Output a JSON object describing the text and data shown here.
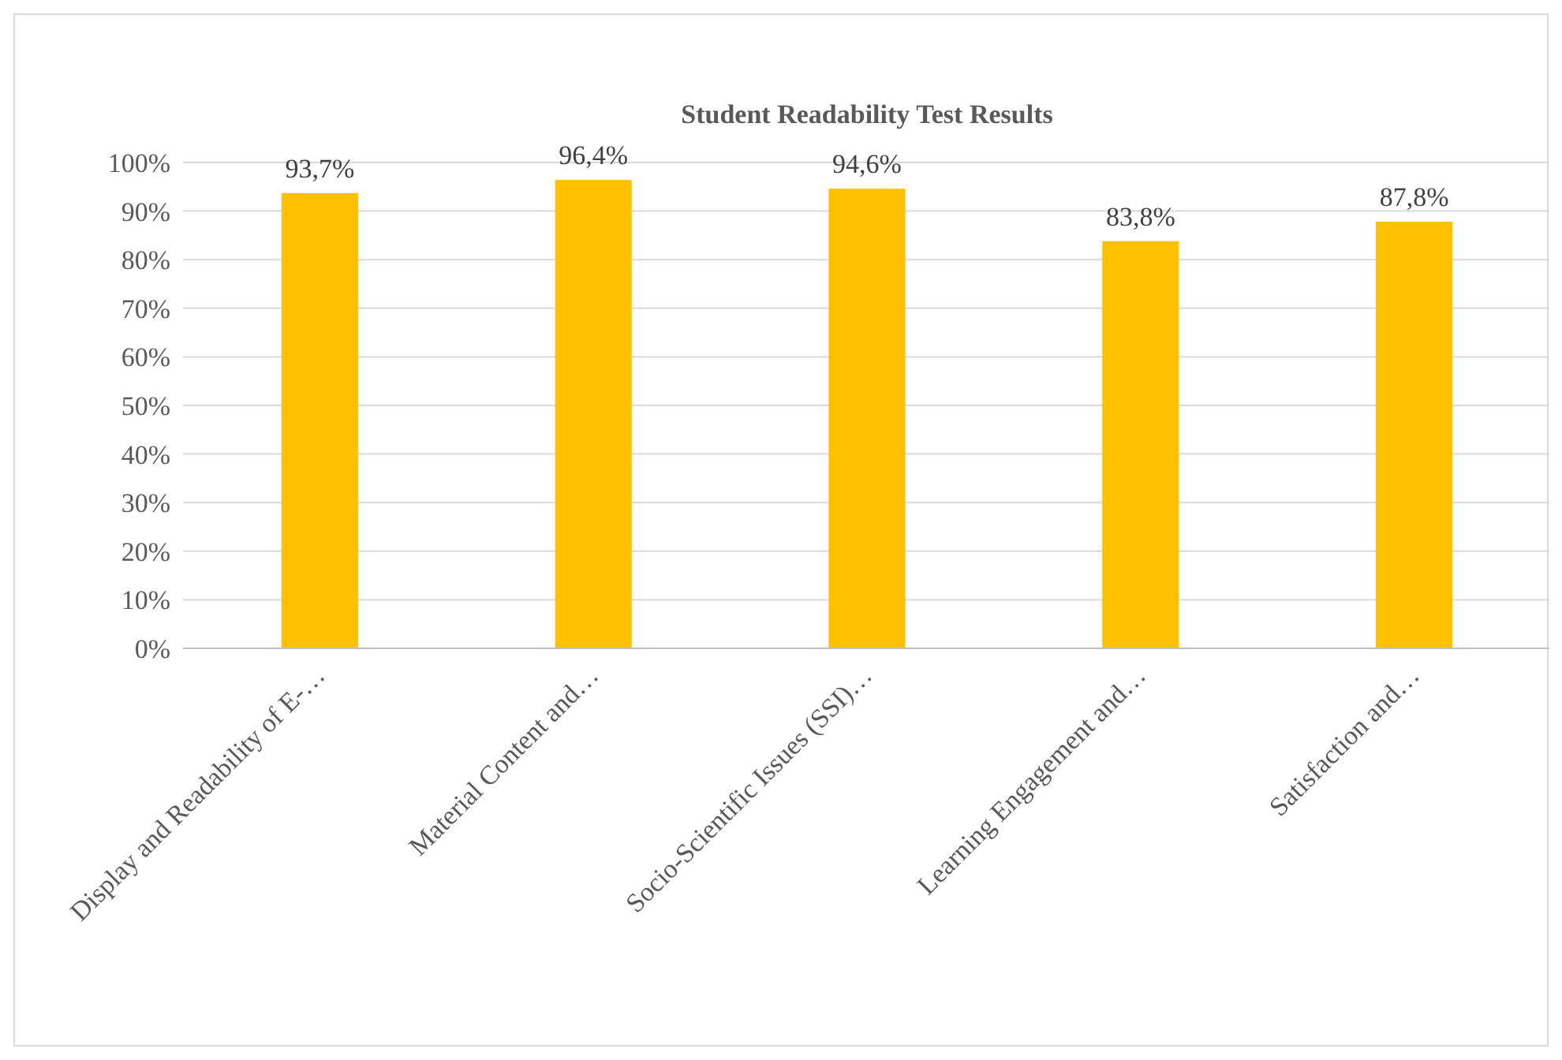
{
  "chart_data": {
    "type": "bar",
    "title": "Student Readability Test Results",
    "categories": [
      "Display and Readability of E-…",
      "Material Content and…",
      "Socio-Scientific Issues (SSI)…",
      "Learning Engagement and…",
      "Satisfaction and…"
    ],
    "values": [
      93.7,
      96.4,
      94.6,
      83.8,
      87.8
    ],
    "color": "#ffc000",
    "value_labels": [
      "93,7%",
      "96,4%",
      "94,6%",
      "83,8%",
      "87,8%"
    ],
    "ylim": [
      0,
      100
    ],
    "yticks": [
      {
        "value": 0,
        "label": "0%"
      },
      {
        "value": 10,
        "label": "10%"
      },
      {
        "value": 20,
        "label": "20%"
      },
      {
        "value": 30,
        "label": "30%"
      },
      {
        "value": 40,
        "label": "40%"
      },
      {
        "value": 50,
        "label": "50%"
      },
      {
        "value": 60,
        "label": "60%"
      },
      {
        "value": 70,
        "label": "70%"
      },
      {
        "value": 80,
        "label": "80%"
      },
      {
        "value": 90,
        "label": "90%"
      },
      {
        "value": 100,
        "label": "100%"
      }
    ],
    "grid": "y"
  }
}
